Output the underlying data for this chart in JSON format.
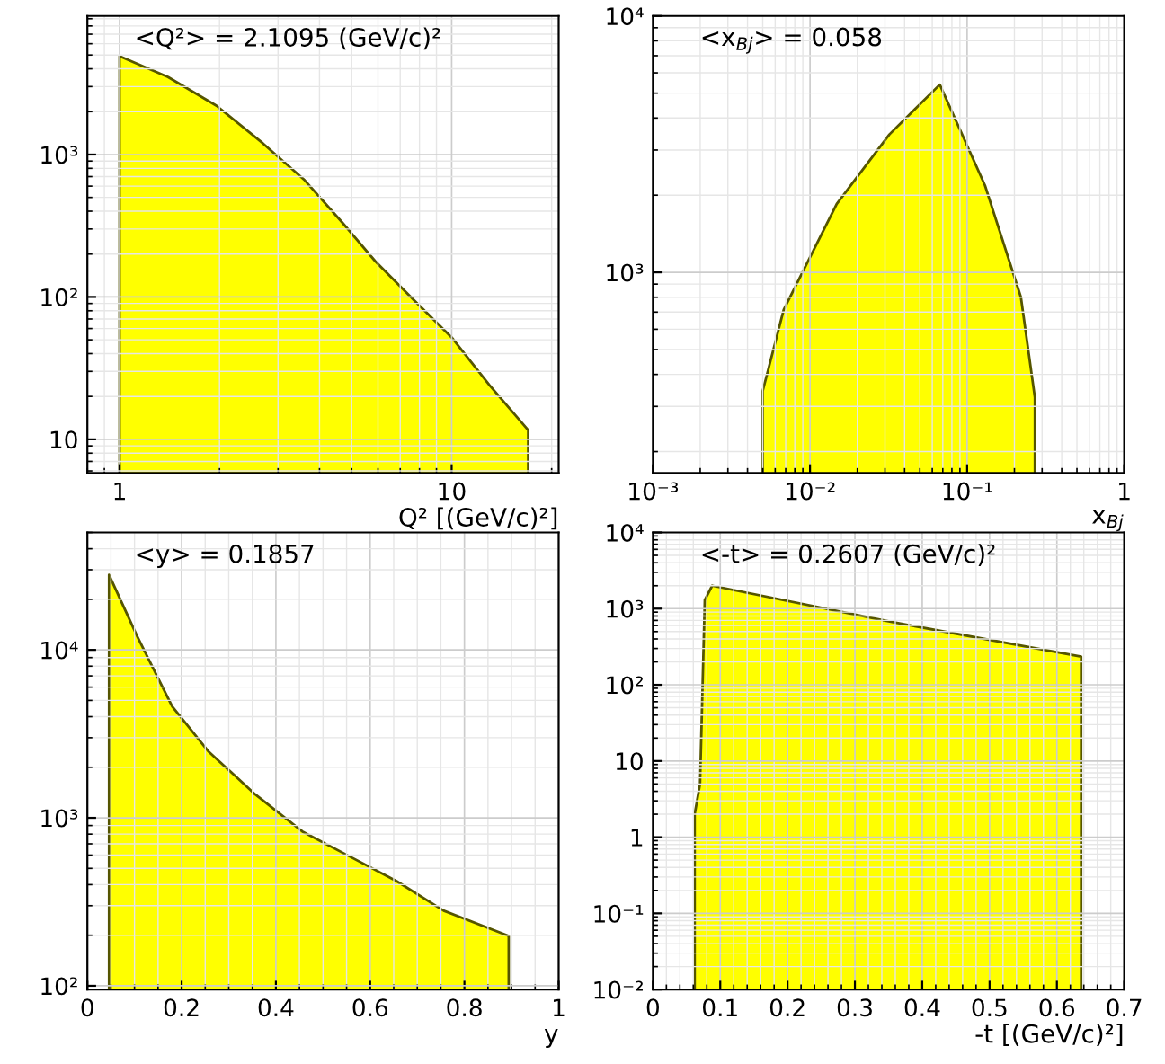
{
  "chart_data": [
    {
      "type": "area",
      "xlabel": "Q² [(GeV/c)²]",
      "annotations": [
        "<Q²> = 2.1095 (GeV/c)²"
      ],
      "log": "xy",
      "grid": true,
      "x": [
        1,
        1.4,
        1.96,
        2.7,
        3.61,
        4.7,
        5.89,
        7.7,
        10,
        13,
        17
      ],
      "series": [
        {
          "color": "#ffff00",
          "values": [
            4900,
            3500,
            2200,
            1200,
            660,
            330,
            178,
            95,
            52,
            24,
            11.6
          ]
        }
      ],
      "xlim": [
        0.8,
        21
      ],
      "ylim": [
        5.8,
        9400
      ],
      "xticks": [
        1,
        10
      ],
      "yticks": [
        10,
        {
          "value": 100,
          "label": "10²"
        },
        {
          "value": 1000,
          "label": "10³"
        }
      ]
    },
    {
      "type": "area",
      "xlabel": "x$_{Bj}$",
      "annotations": [
        "<x$_{Bj}$> = 0.058"
      ],
      "log": "xy",
      "grid": true,
      "x": [
        0.005,
        0.0068,
        0.0148,
        0.032,
        0.067,
        0.13,
        0.22,
        0.27
      ],
      "series": [
        {
          "color": "#ffff00",
          "values": [
            345,
            715,
            1850,
            3450,
            5400,
            2180,
            800,
            325
          ]
        }
      ],
      "xlim": [
        0.001,
        1
      ],
      "ylim": [
        165,
        10000
      ],
      "xticks": [
        {
          "value": 0.001,
          "label": "10⁻³"
        },
        {
          "value": 0.01,
          "label": "10⁻²"
        },
        {
          "value": 0.1,
          "label": "10⁻¹"
        },
        1
      ],
      "yticks": [
        {
          "value": 1000,
          "label": "10³"
        },
        {
          "value": 10000,
          "label": "10⁴"
        }
      ]
    },
    {
      "type": "area",
      "xlabel": "y",
      "annotations": [
        "<y> = 0.1857"
      ],
      "log": "y",
      "grid": true,
      "x": [
        0.046,
        0.106,
        0.18,
        0.256,
        0.356,
        0.456,
        0.556,
        0.656,
        0.756,
        0.894
      ],
      "series": [
        {
          "color": "#ffff00",
          "values": [
            28000,
            12000,
            4600,
            2500,
            1380,
            830,
            590,
            420,
            280,
            198
          ]
        }
      ],
      "xlim": [
        0,
        1
      ],
      "ylim": [
        95,
        50000
      ],
      "xticks": [
        0,
        0.2,
        0.4,
        0.6,
        0.8,
        1
      ],
      "yticks": [
        {
          "value": 100,
          "label": "10²"
        },
        {
          "value": 1000,
          "label": "10³"
        },
        {
          "value": 10000,
          "label": "10⁴"
        }
      ]
    },
    {
      "type": "area",
      "xlabel": "-t [(GeV/c)²]",
      "annotations": [
        "<-t> = 0.2607 (GeV/c)²"
      ],
      "log": "y",
      "grid": true,
      "x": [
        0.062,
        0.07,
        0.077,
        0.088,
        0.35,
        0.636
      ],
      "series": [
        {
          "color": "#ffff00",
          "values": [
            2,
            5,
            1300,
            2000,
            680,
            235
          ]
        }
      ],
      "xlim": [
        0,
        0.7
      ],
      "ylim": [
        0.01,
        10000
      ],
      "xticks": [
        0,
        0.1,
        0.2,
        0.3,
        0.4,
        0.5,
        0.6,
        0.7
      ],
      "yticks": [
        {
          "value": 0.01,
          "label": "10⁻²"
        },
        {
          "value": 0.1,
          "label": "10⁻¹"
        },
        1,
        10,
        {
          "value": 100,
          "label": "10²"
        },
        {
          "value": 1000,
          "label": "10³"
        },
        {
          "value": 10000,
          "label": "10⁴"
        }
      ]
    }
  ]
}
